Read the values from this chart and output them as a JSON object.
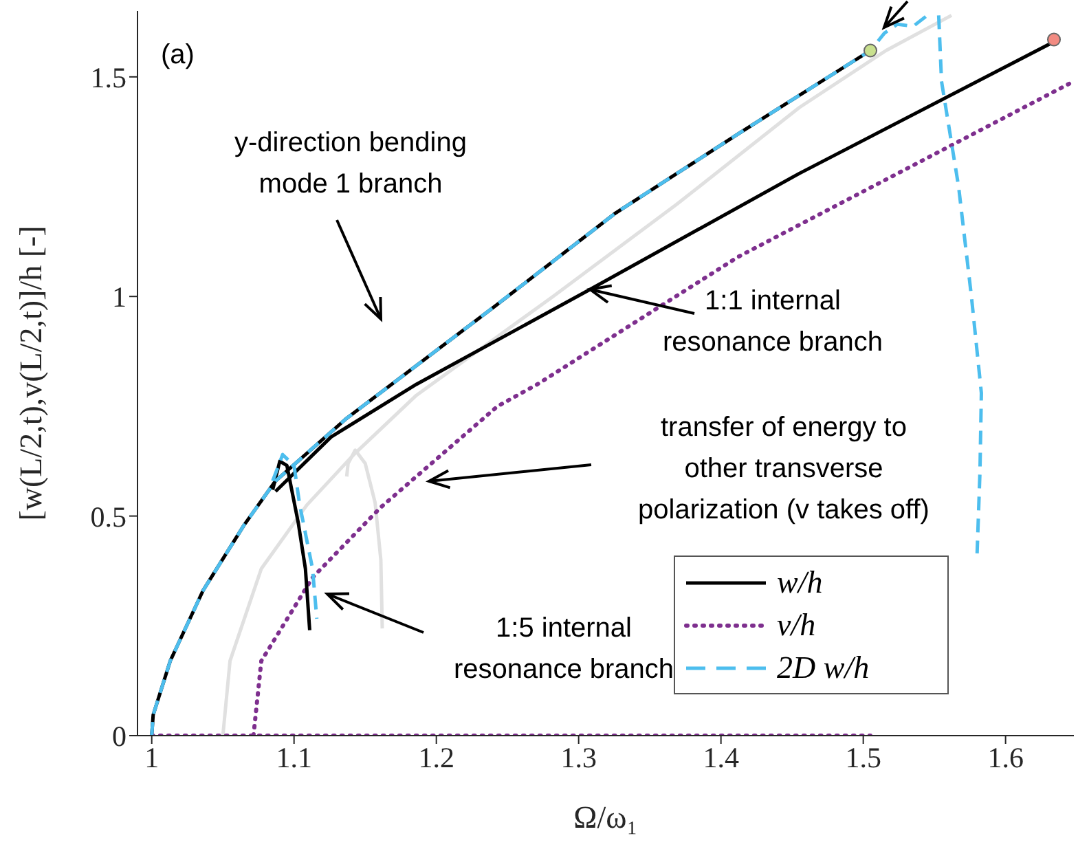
{
  "chart_data": {
    "type": "line",
    "xlabel": "Ω/ω₁",
    "ylabel": "[w(L/2,t),v(L/2,t)]/h [-]",
    "xlim": [
      0.99,
      1.648
    ],
    "ylim": [
      0,
      1.65
    ],
    "xticks": [
      1,
      1.1,
      1.2,
      1.3,
      1.4,
      1.5,
      1.6
    ],
    "yticks": [
      0,
      0.5,
      1,
      1.5
    ],
    "grid": false,
    "legend": "bottom right",
    "series": [
      {
        "color": "#e0e0e0",
        "line_style": "solid",
        "marker": "none",
        "x": [
          1.05,
          1.055,
          1.077,
          1.109,
          1.142,
          1.186,
          1.282,
          1.369,
          1.455,
          1.516,
          1.562
        ],
        "values": [
          0,
          0.17,
          0.38,
          0.525,
          0.64,
          0.775,
          1.0,
          1.21,
          1.43,
          1.56,
          1.64
        ]
      },
      {
        "color": "#e0e0e0",
        "line_style": "solid",
        "marker": "none",
        "x": [
          1.162,
          1.161,
          1.157,
          1.15,
          1.143,
          1.138,
          1.137
        ],
        "values": [
          0.244,
          0.4,
          0.53,
          0.62,
          0.65,
          0.62,
          0.59
        ]
      },
      {
        "name": "w/h",
        "color": "#000000",
        "line_style": "solid",
        "marker": "none",
        "x": [
          1.0,
          1.001,
          1.013,
          1.036,
          1.065,
          1.087,
          1.136,
          1.24,
          1.326,
          1.412,
          1.505
        ],
        "values": [
          0,
          0.047,
          0.17,
          0.33,
          0.48,
          0.58,
          0.72,
          0.975,
          1.19,
          1.37,
          1.56
        ]
      },
      {
        "name": "v/h",
        "color": "#7e2f8e",
        "line_style": "dotted",
        "marker": "none",
        "x": [
          1.0715,
          1.077,
          1.113,
          1.161,
          1.243,
          1.271,
          1.412,
          1.648
        ],
        "values": [
          0,
          0.17,
          0.36,
          0.52,
          0.75,
          0.8,
          1.09,
          1.49
        ]
      },
      {
        "color": "#7e2f8e",
        "line_style": "dotted",
        "marker": "none",
        "x": [
          1.0,
          1.505
        ],
        "values": [
          0,
          0
        ]
      },
      {
        "color": "#000000",
        "line_style": "solid",
        "marker": "none",
        "x": [
          1.087,
          1.126,
          1.186,
          1.308,
          1.455,
          1.634
        ],
        "values": [
          0.556,
          0.68,
          0.8,
          1.016,
          1.28,
          1.58
        ]
      },
      {
        "color": "#000000",
        "line_style": "solid",
        "marker": "none",
        "x": [
          1.085,
          1.09,
          1.095,
          1.103,
          1.108,
          1.111
        ],
        "values": [
          0.56,
          0.625,
          0.615,
          0.484,
          0.38,
          0.24
        ]
      },
      {
        "name": "2D w/h",
        "color": "#4dbeee",
        "line_style": "dashed",
        "marker": "none",
        "x": [
          1.0,
          1.001,
          1.013,
          1.036,
          1.065,
          1.087,
          1.136,
          1.24,
          1.326,
          1.412,
          1.505,
          1.515,
          1.524,
          1.535,
          1.545
        ],
        "values": [
          0,
          0.047,
          0.17,
          0.33,
          0.48,
          0.58,
          0.72,
          0.975,
          1.19,
          1.37,
          1.56,
          1.6,
          1.62,
          1.615,
          1.64
        ]
      },
      {
        "color": "#4dbeee",
        "line_style": "dashed",
        "marker": "none",
        "x": [
          1.553,
          1.555,
          1.567,
          1.576,
          1.583,
          1.582,
          1.58
        ],
        "values": [
          1.64,
          1.49,
          1.25,
          1.0,
          0.78,
          0.6,
          0.415
        ]
      },
      {
        "color": "#4dbeee",
        "line_style": "dashed",
        "marker": "none",
        "x": [
          1.085,
          1.092,
          1.1,
          1.104,
          1.113,
          1.116
        ],
        "values": [
          0.58,
          0.64,
          0.615,
          0.525,
          0.38,
          0.266
        ]
      },
      {
        "type": "scatter",
        "color": "#c8e08e",
        "marker": "circle",
        "x": [
          1.505
        ],
        "values": [
          1.56
        ]
      },
      {
        "type": "scatter",
        "color": "#f28b82",
        "marker": "circle",
        "x": [
          1.634
        ],
        "values": [
          1.585
        ]
      }
    ],
    "annotations": [
      "(a)",
      "y-direction bending\nmode 1 branch",
      {
        "text": "1:1 internal\nresonance branch",
        "x": 1.308,
        "y": 1.016
      },
      "transfer of energy to\nother transverse\npolarization (v takes off)",
      "1:5 internal\nresonance branch"
    ]
  }
}
